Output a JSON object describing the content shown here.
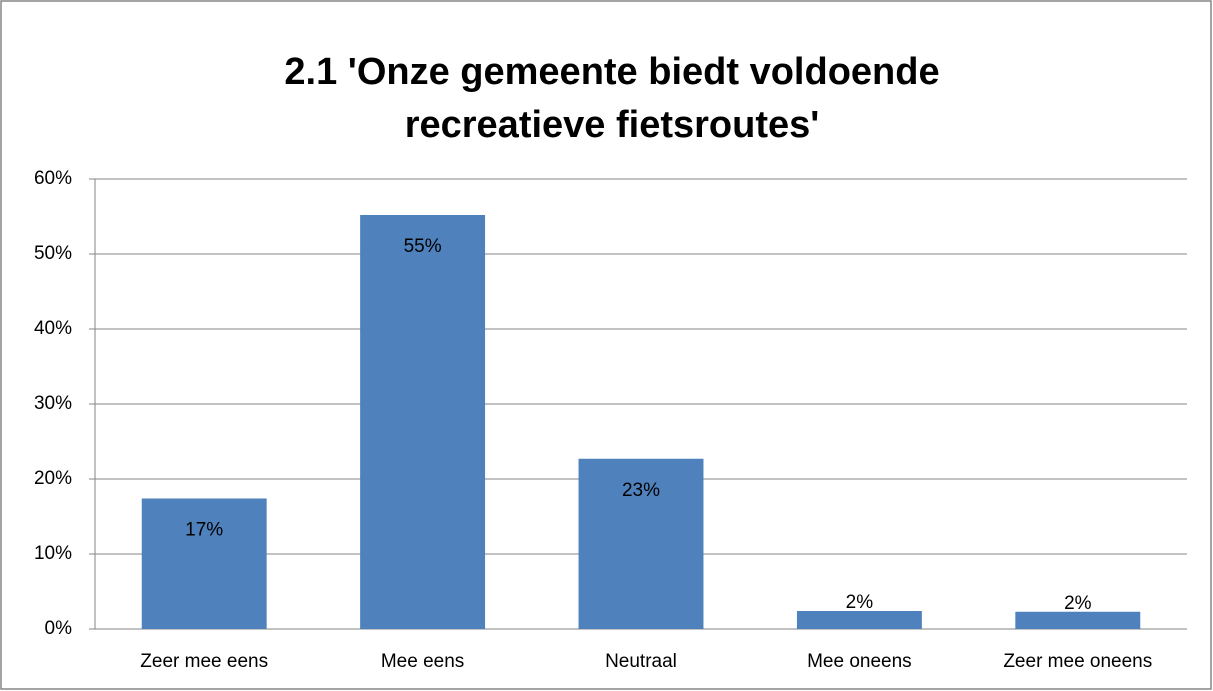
{
  "chart_data": {
    "type": "bar",
    "title": [
      "2.1 'Onze gemeente biedt voldoende",
      "recreatieve fietsroutes'"
    ],
    "categories": [
      "Zeer mee eens",
      "Mee eens",
      "Neutraal",
      "Mee oneens",
      "Zeer mee oneens"
    ],
    "values": [
      17.4,
      55.2,
      22.7,
      2.4,
      2.3
    ],
    "value_labels": [
      "17%",
      "55%",
      "23%",
      "2%",
      "2%"
    ],
    "color": "#4f81bd",
    "ylim": [
      0,
      60
    ],
    "yticks": [
      {
        "value": 0,
        "label": "0%"
      },
      {
        "value": 10,
        "label": "10%"
      },
      {
        "value": 20,
        "label": "20%"
      },
      {
        "value": 30,
        "label": "30%"
      },
      {
        "value": 40,
        "label": "40%"
      },
      {
        "value": 50,
        "label": "50%"
      },
      {
        "value": 60,
        "label": "60%"
      }
    ],
    "grid": true
  }
}
